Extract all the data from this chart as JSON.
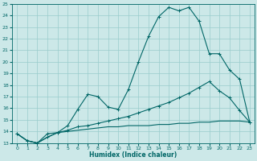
{
  "xlabel": "Humidex (Indice chaleur)",
  "bg_color": "#cce8e8",
  "grid_color": "#99cccc",
  "line_color": "#006666",
  "xlim": [
    -0.5,
    23.5
  ],
  "ylim": [
    13,
    25
  ],
  "xticks": [
    0,
    1,
    2,
    3,
    4,
    5,
    6,
    7,
    8,
    9,
    10,
    11,
    12,
    13,
    14,
    15,
    16,
    17,
    18,
    19,
    20,
    21,
    22,
    23
  ],
  "yticks": [
    13,
    14,
    15,
    16,
    17,
    18,
    19,
    20,
    21,
    22,
    23,
    24,
    25
  ],
  "line1_x": [
    0,
    1,
    2,
    3,
    4,
    5,
    6,
    7,
    8,
    9,
    10,
    11,
    12,
    13,
    14,
    15,
    16,
    17,
    18,
    19,
    20,
    21,
    22,
    23
  ],
  "line1_y": [
    13.8,
    13.2,
    13.0,
    13.8,
    13.9,
    14.5,
    15.9,
    17.2,
    17.0,
    16.1,
    15.9,
    17.6,
    20.0,
    22.2,
    23.9,
    24.7,
    24.4,
    24.7,
    23.5,
    20.7,
    20.7,
    19.3,
    18.5,
    14.8
  ],
  "line2_x": [
    0,
    1,
    2,
    3,
    4,
    5,
    6,
    7,
    8,
    9,
    10,
    11,
    12,
    13,
    14,
    15,
    16,
    17,
    18,
    19,
    20,
    21,
    22,
    23
  ],
  "line2_y": [
    13.8,
    13.2,
    13.0,
    13.5,
    13.9,
    14.1,
    14.4,
    14.5,
    14.7,
    14.9,
    15.1,
    15.3,
    15.6,
    15.9,
    16.2,
    16.5,
    16.9,
    17.3,
    17.8,
    18.3,
    17.5,
    16.9,
    15.8,
    14.8
  ],
  "line3_x": [
    0,
    1,
    2,
    3,
    4,
    5,
    6,
    7,
    8,
    9,
    10,
    11,
    12,
    13,
    14,
    15,
    16,
    17,
    18,
    19,
    20,
    21,
    22,
    23
  ],
  "line3_y": [
    13.8,
    13.2,
    13.0,
    13.5,
    13.9,
    14.0,
    14.1,
    14.2,
    14.3,
    14.4,
    14.4,
    14.5,
    14.5,
    14.5,
    14.6,
    14.6,
    14.7,
    14.7,
    14.8,
    14.8,
    14.9,
    14.9,
    14.9,
    14.8
  ]
}
